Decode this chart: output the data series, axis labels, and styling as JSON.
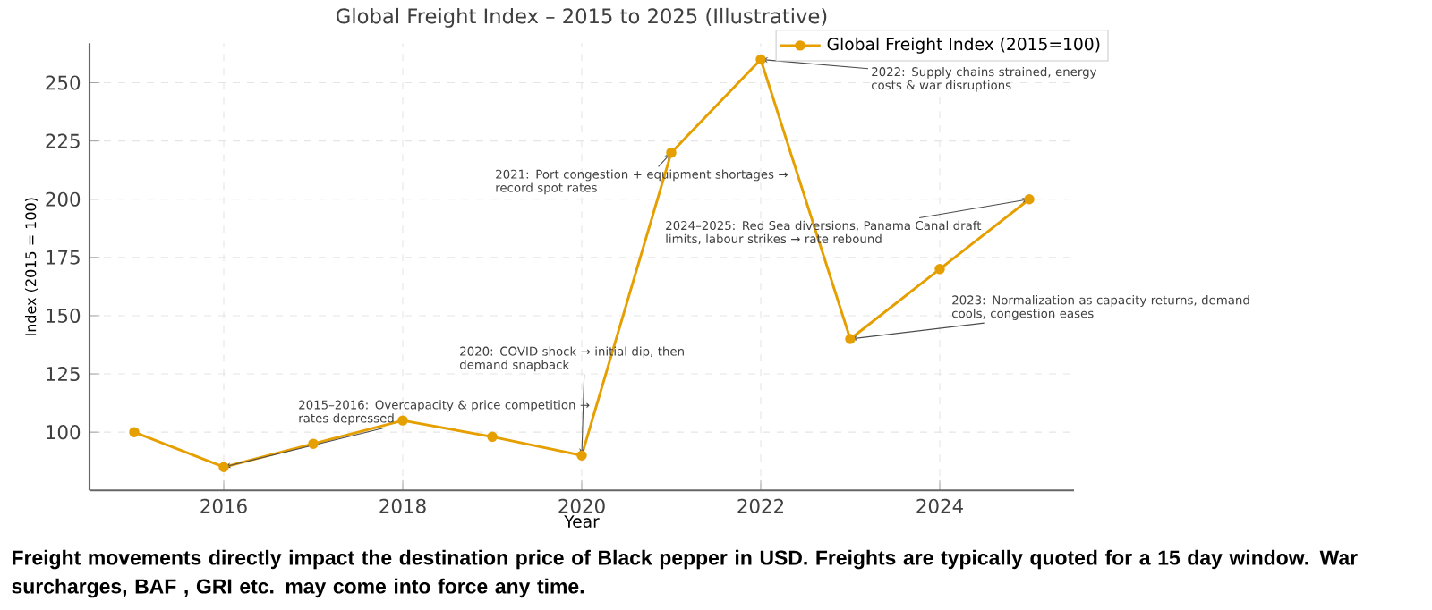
{
  "chart_data": {
    "type": "line",
    "title": "Global Freight Index – 2015 to 2025 (Illustrative)",
    "xlabel": "Year",
    "ylabel": "Index (2015 = 100)",
    "x": [
      2015,
      2016,
      2017,
      2018,
      2019,
      2020,
      2021,
      2022,
      2023,
      2024,
      2025
    ],
    "series": [
      {
        "name": "Global Freight Index (2015=100)",
        "color": "#e69f00",
        "values": [
          100,
          85,
          95,
          105,
          98,
          90,
          220,
          260,
          140,
          170,
          200
        ]
      }
    ],
    "xlim": [
      2014.5,
      2025.5
    ],
    "ylim": [
      75,
      267
    ],
    "xticks": [
      2016,
      2018,
      2020,
      2022,
      2024
    ],
    "yticks": [
      100,
      125,
      150,
      175,
      200,
      225,
      250
    ],
    "grid": true,
    "legend": "top right",
    "marker": "circle",
    "line_style": "solid",
    "annotations": [
      {
        "text": "2015–2016: Overcapacity & price competition → rates depressed",
        "x": 2016,
        "y": 85
      },
      {
        "text": "2020: COVID shock → initial dip, then demand snapback",
        "x": 2020,
        "y": 90
      },
      {
        "text": "2021: Port congestion + equipment shortages → record spot rates",
        "x": 2021,
        "y": 220
      },
      {
        "text": "2022: Supply chains strained, energy costs & war disruptions",
        "x": 2022,
        "y": 260
      },
      {
        "text": "2024–2025: Red Sea diversions, Panama Canal draft limits, labour strikes → rate rebound",
        "x": 2025,
        "y": 200
      },
      {
        "text": "2023: Normalization as capacity returns, demand cools, congestion eases",
        "x": 2023,
        "y": 140
      },
      "Freight  movements directly impact the destination price of Black pepper in USD. Freights are typically quoted for a 15 day window. War surcharges, BAF , GRI etc. may come into force any time."
    ]
  }
}
